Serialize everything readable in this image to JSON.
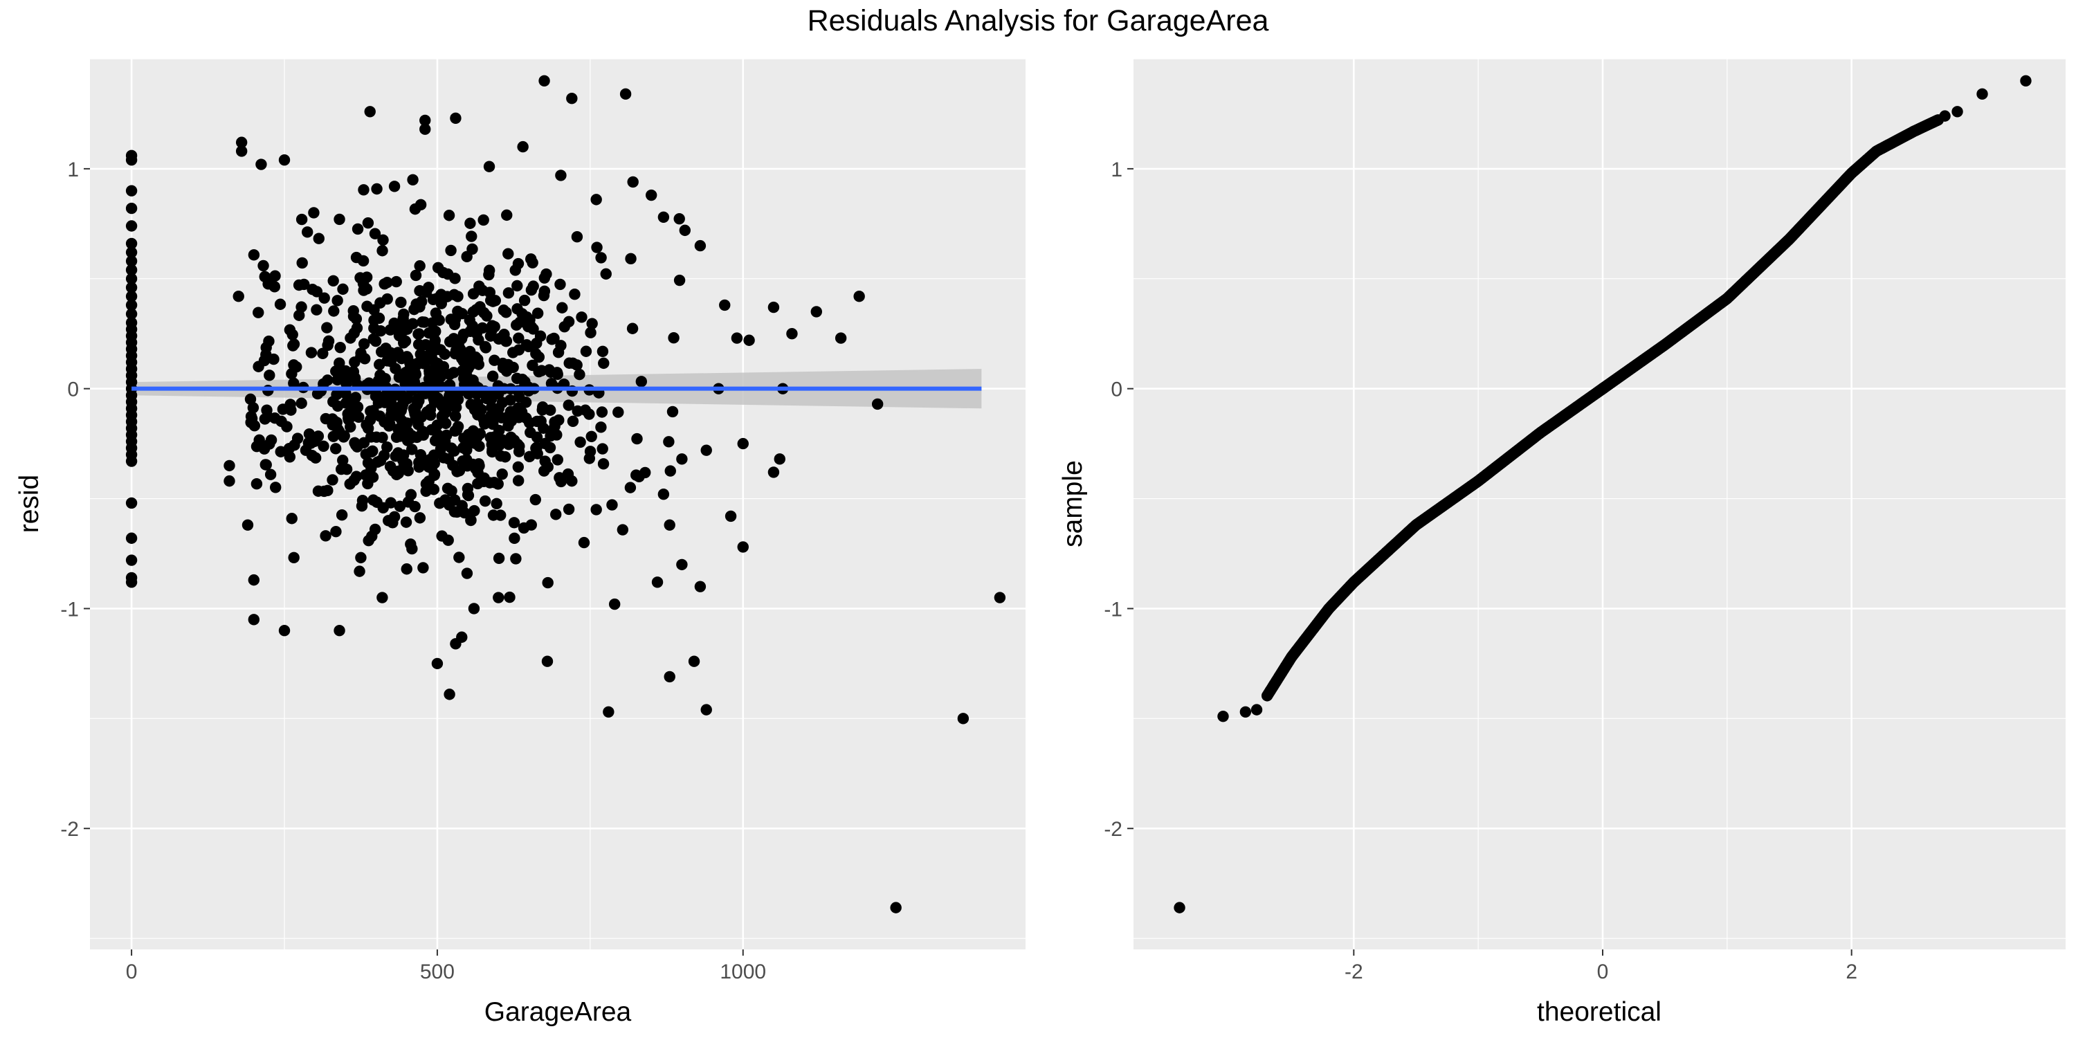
{
  "figure": {
    "title": "Residuals Analysis for GarageArea"
  },
  "colors": {
    "panel_background": "#ebebeb",
    "grid_major": "#ffffff",
    "points": "#000000",
    "fit_line": "#3366ff",
    "confidence_band": "#c4c4c4"
  },
  "chart_data": [
    {
      "type": "scatter",
      "title": "",
      "xlabel": "GarageArea",
      "ylabel": "resid",
      "xlim": [
        -68,
        1462
      ],
      "ylim": [
        -2.55,
        1.5
      ],
      "xticks": [
        0,
        500,
        1000
      ],
      "xtick_labels": [
        "0",
        "500",
        "1000"
      ],
      "yticks": [
        -2,
        -1,
        0,
        1
      ],
      "ytick_labels": [
        "-2",
        "-1",
        "0",
        "1"
      ],
      "grid": true,
      "legend": "none",
      "smooth": {
        "method": "lm",
        "x": [
          0,
          1390
        ],
        "y": [
          0.0,
          0.0
        ],
        "se_low": [
          -0.03,
          -0.09
        ],
        "se_high": [
          0.03,
          0.09
        ]
      },
      "points": [
        [
          0,
          1.06
        ],
        [
          0,
          1.04
        ],
        [
          0,
          0.9
        ],
        [
          0,
          0.82
        ],
        [
          0,
          0.74
        ],
        [
          0,
          0.66
        ],
        [
          0,
          0.62
        ],
        [
          0,
          0.58
        ],
        [
          0,
          0.54
        ],
        [
          0,
          0.5
        ],
        [
          0,
          0.46
        ],
        [
          0,
          0.42
        ],
        [
          0,
          0.38
        ],
        [
          0,
          0.34
        ],
        [
          0,
          0.3
        ],
        [
          0,
          0.27
        ],
        [
          0,
          0.24
        ],
        [
          0,
          0.21
        ],
        [
          0,
          0.18
        ],
        [
          0,
          0.15
        ],
        [
          0,
          0.12
        ],
        [
          0,
          0.09
        ],
        [
          0,
          0.06
        ],
        [
          0,
          0.03
        ],
        [
          0,
          0.0
        ],
        [
          0,
          -0.03
        ],
        [
          0,
          -0.06
        ],
        [
          0,
          -0.09
        ],
        [
          0,
          -0.12
        ],
        [
          0,
          -0.15
        ],
        [
          0,
          -0.18
        ],
        [
          0,
          -0.21
        ],
        [
          0,
          -0.24
        ],
        [
          0,
          -0.27
        ],
        [
          0,
          -0.3
        ],
        [
          0,
          -0.33
        ],
        [
          0,
          -0.52
        ],
        [
          0,
          -0.68
        ],
        [
          0,
          -0.78
        ],
        [
          0,
          -0.86
        ],
        [
          0,
          -0.88
        ],
        [
          180,
          1.12
        ],
        [
          180,
          1.08
        ],
        [
          250,
          1.04
        ],
        [
          212,
          1.02
        ],
        [
          340,
          0.77
        ],
        [
          298,
          0.8
        ],
        [
          175,
          0.42
        ],
        [
          160,
          -0.35
        ],
        [
          160,
          -0.42
        ],
        [
          190,
          -0.62
        ],
        [
          200,
          -0.87
        ],
        [
          200,
          -1.05
        ],
        [
          250,
          -1.1
        ],
        [
          340,
          -1.1
        ],
        [
          390,
          1.26
        ],
        [
          480,
          1.22
        ],
        [
          480,
          1.18
        ],
        [
          530,
          1.23
        ],
        [
          585,
          1.01
        ],
        [
          640,
          1.1
        ],
        [
          675,
          1.4
        ],
        [
          720,
          1.32
        ],
        [
          808,
          1.34
        ],
        [
          702,
          0.97
        ],
        [
          760,
          0.86
        ],
        [
          820,
          0.94
        ],
        [
          850,
          0.88
        ],
        [
          870,
          0.78
        ],
        [
          905,
          0.72
        ],
        [
          930,
          0.65
        ],
        [
          970,
          0.38
        ],
        [
          990,
          0.23
        ],
        [
          1010,
          0.22
        ],
        [
          1050,
          0.37
        ],
        [
          1080,
          0.25
        ],
        [
          1120,
          0.35
        ],
        [
          1160,
          0.23
        ],
        [
          1190,
          0.42
        ],
        [
          1065,
          0.0
        ],
        [
          1220,
          -0.07
        ],
        [
          1050,
          -0.38
        ],
        [
          1060,
          -0.32
        ],
        [
          1000,
          -0.25
        ],
        [
          980,
          -0.58
        ],
        [
          1000,
          -0.72
        ],
        [
          900,
          -0.8
        ],
        [
          880,
          -0.62
        ],
        [
          880,
          -1.31
        ],
        [
          920,
          -1.24
        ],
        [
          940,
          -1.46
        ],
        [
          930,
          -0.9
        ],
        [
          860,
          -0.88
        ],
        [
          790,
          -0.98
        ],
        [
          780,
          -1.47
        ],
        [
          740,
          -0.7
        ],
        [
          680,
          -1.24
        ],
        [
          600,
          -0.95
        ],
        [
          560,
          -1.0
        ],
        [
          540,
          -1.13
        ],
        [
          530,
          -1.16
        ],
        [
          520,
          -1.39
        ],
        [
          500,
          -1.25
        ],
        [
          420,
          -0.6
        ],
        [
          410,
          -0.95
        ],
        [
          450,
          -0.82
        ],
        [
          720,
          -0.42
        ],
        [
          760,
          -0.55
        ],
        [
          830,
          -0.4
        ],
        [
          870,
          -0.48
        ],
        [
          900,
          -0.32
        ],
        [
          940,
          -0.28
        ],
        [
          960,
          0.0
        ],
        [
          1420,
          -0.95
        ],
        [
          1360,
          -1.5
        ],
        [
          1250,
          -2.36
        ],
        [
          460,
          0.95
        ],
        [
          430,
          0.92
        ]
      ],
      "cloud": {
        "x_range": [
          190,
          900
        ],
        "x_center": 490,
        "resid_sd": 0.33,
        "count": 820
      }
    },
    {
      "type": "scatter",
      "title": "",
      "xlabel": "theoretical",
      "ylabel": "sample",
      "xlim": [
        -3.77,
        3.72
      ],
      "ylim": [
        -2.55,
        1.5
      ],
      "xticks": [
        -2,
        0,
        2
      ],
      "xtick_labels": [
        "-2",
        "0",
        "2"
      ],
      "yticks": [
        -2,
        -1,
        0,
        1
      ],
      "ytick_labels": [
        "-2",
        "-1",
        "0",
        "1"
      ],
      "grid": true,
      "legend": "none",
      "qq_curve": {
        "theoretical": [
          -3.4,
          -3.05,
          -2.85,
          -2.7,
          -2.5,
          -2.2,
          -2.0,
          -1.5,
          -1.0,
          -0.5,
          0,
          0.5,
          1.0,
          1.5,
          2.0,
          2.2,
          2.5,
          2.8,
          3.05,
          3.4
        ],
        "sample": [
          -2.36,
          -1.49,
          -1.47,
          -1.4,
          -1.22,
          -1.0,
          -0.88,
          -0.62,
          -0.42,
          -0.2,
          0.0,
          0.2,
          0.41,
          0.68,
          0.98,
          1.08,
          1.17,
          1.25,
          1.34,
          1.4
        ]
      },
      "point_count": 1050
    }
  ]
}
